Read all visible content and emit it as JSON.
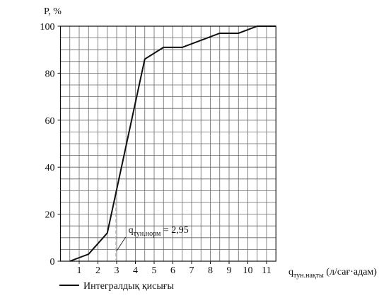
{
  "chart_data": {
    "type": "line",
    "y_label": "P, %",
    "x_label": {
      "main": "q",
      "subscript": "тун.нақты",
      "suffix": " (л/сағ·адам)"
    },
    "x": [
      0.5,
      1.5,
      2.5,
      4.5,
      5.5,
      6.5,
      7.5,
      8.5,
      9.5,
      10.5,
      11.5
    ],
    "series": [
      {
        "name": "Интегралдық қисығы",
        "color": "#111111",
        "values": [
          0,
          3,
          12,
          86,
          91,
          91,
          94,
          97,
          97,
          100,
          100
        ]
      }
    ],
    "xlim": [
      0,
      11.5
    ],
    "xticks": [
      1,
      2,
      3,
      4,
      5,
      6,
      7,
      8,
      9,
      10,
      11
    ],
    "ylim": [
      0,
      100
    ],
    "yticks": [
      0,
      20,
      40,
      60,
      80,
      100
    ],
    "grid": {
      "x_step": 0.5,
      "y_step": 5
    },
    "annotation": {
      "main": "q",
      "subscript": "тун.норм",
      "suffix": " = 2,95",
      "x": 2.95,
      "y": 30
    }
  }
}
